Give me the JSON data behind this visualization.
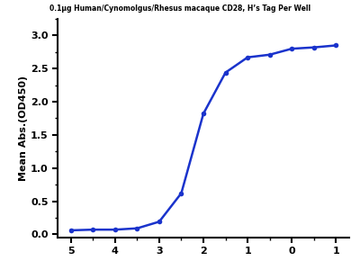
{
  "title": "0.1μg Human/Cynomolgus/Rhesus macaque CD28, H’s Tag Per Well",
  "ylabel": "Mean Abs.(OD450)",
  "xlabel": "",
  "line_color": "#1a33cc",
  "marker_color": "#1a33cc",
  "marker_style": "o",
  "marker_size": 4,
  "line_width": 1.8,
  "xlim": [
    -5.3,
    1.3
  ],
  "ylim": [
    -0.05,
    3.25
  ],
  "xticks": [
    -5,
    -4,
    -3,
    -2,
    -1,
    0,
    1
  ],
  "xticklabels": [
    "5",
    "4",
    "3",
    "2",
    "1",
    "0",
    "1"
  ],
  "yticks": [
    0.0,
    0.5,
    1.0,
    1.5,
    2.0,
    2.5,
    3.0
  ],
  "title_fontsize": 5.5,
  "axis_fontsize": 8,
  "tick_fontsize": 8,
  "data_x": [
    -5.0,
    -4.5,
    -4.0,
    -3.5,
    -3.0,
    -2.5,
    -2.0,
    -1.5,
    -1.0,
    -0.5,
    0.0,
    0.5,
    1.0
  ],
  "data_y": [
    0.06,
    0.07,
    0.07,
    0.09,
    0.19,
    0.62,
    1.82,
    2.44,
    2.67,
    2.71,
    2.8,
    2.82,
    2.85
  ],
  "background_color": "#ffffff",
  "spine_color": "#000000"
}
